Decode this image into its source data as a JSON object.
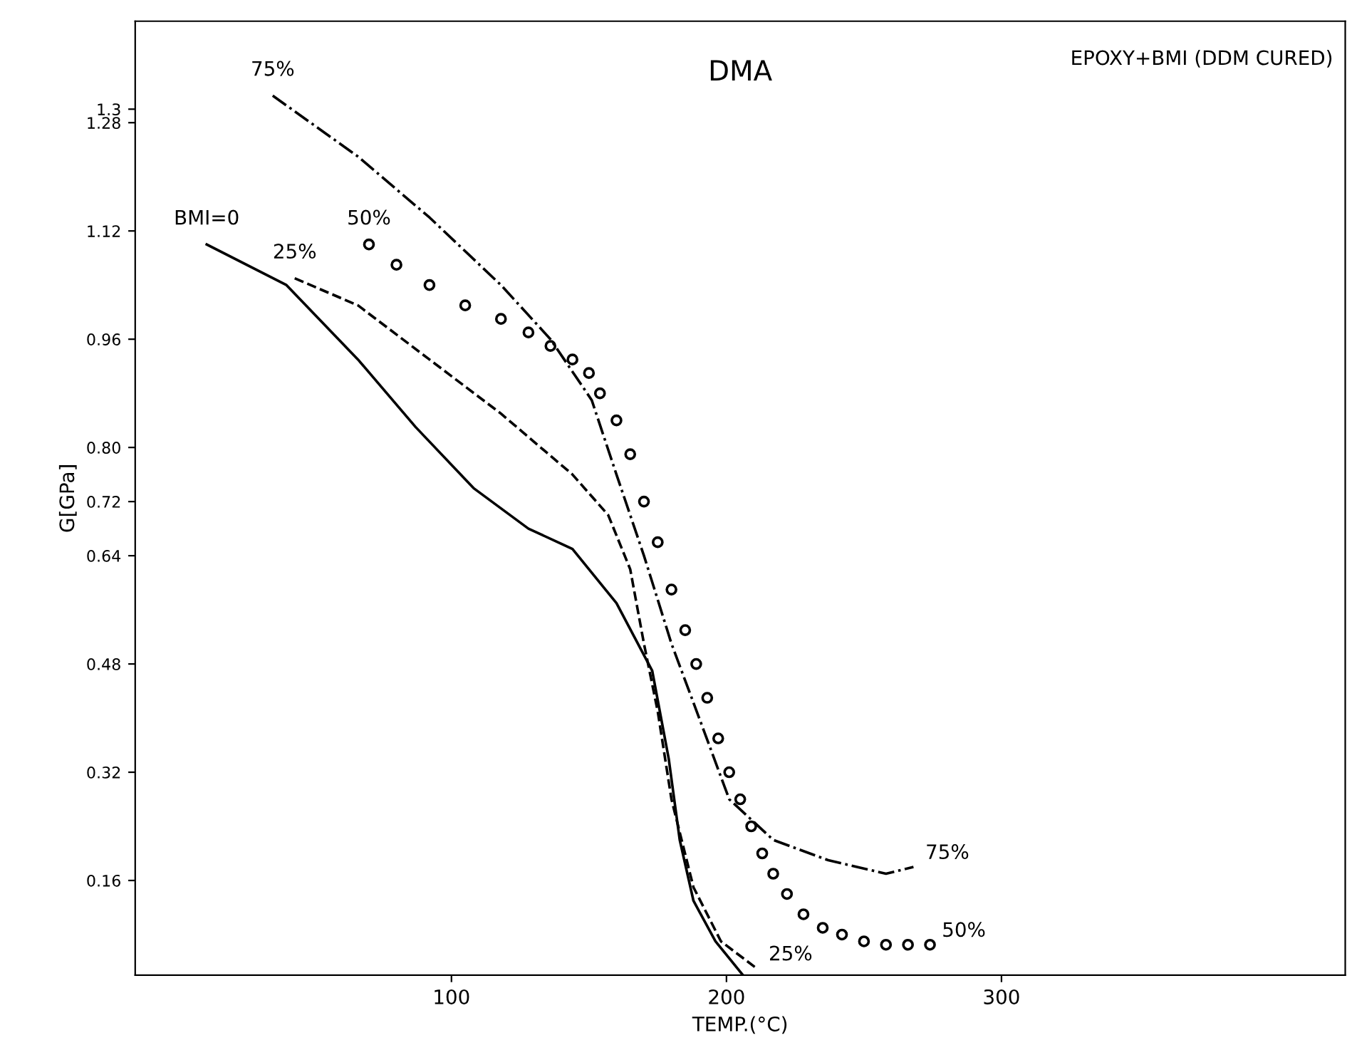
{
  "chart_data": {
    "type": "line",
    "title": "DMA",
    "subtitle": "EPOXY+BMI (DDM CURED)",
    "xlabel": "TEMP.(°C)",
    "ylabel": "G[GPa]",
    "xlim": [
      -15,
      425
    ],
    "xticks": [
      100,
      200,
      300
    ],
    "ylim": [
      0.02,
      1.43
    ],
    "yticks": [
      0.16,
      0.32,
      0.48,
      0.64,
      0.72,
      {
        "value": 0.8,
        "label": "0.80"
      },
      0.96,
      1.12,
      1.28,
      1.3
    ],
    "grid": false,
    "legend": false,
    "series": [
      {
        "name": "BMI=0",
        "color": "#000000",
        "line_style": "solid",
        "marker": "none",
        "x": [
          11,
          40,
          66,
          87,
          108,
          128,
          144,
          160,
          173,
          179,
          183,
          188,
          196,
          206
        ],
        "values": [
          1.1,
          1.04,
          0.93,
          0.83,
          0.74,
          0.68,
          0.65,
          0.57,
          0.47,
          0.34,
          0.22,
          0.13,
          0.07,
          0.02
        ]
      },
      {
        "name": "25%",
        "color": "#000000",
        "line_style": "dashed",
        "marker": "none",
        "x": [
          43,
          66,
          92,
          118,
          144,
          157,
          165,
          170,
          175,
          180,
          188,
          198,
          211
        ],
        "values": [
          1.05,
          1.01,
          0.93,
          0.85,
          0.76,
          0.7,
          0.62,
          0.51,
          0.41,
          0.28,
          0.15,
          0.07,
          0.03
        ]
      },
      {
        "name": "50%",
        "color": "#000000",
        "type": "scatter",
        "marker": "circle",
        "x": [
          70,
          80,
          92,
          105,
          118,
          128,
          136,
          144,
          150,
          154,
          160,
          165,
          170,
          175,
          180,
          185,
          189,
          193,
          197,
          201,
          205,
          209,
          213,
          217,
          222,
          228,
          235,
          242,
          250,
          258,
          266,
          274
        ],
        "values": [
          1.1,
          1.07,
          1.04,
          1.01,
          0.99,
          0.97,
          0.95,
          0.93,
          0.91,
          0.88,
          0.84,
          0.79,
          0.72,
          0.66,
          0.59,
          0.53,
          0.48,
          0.43,
          0.37,
          0.32,
          0.28,
          0.24,
          0.2,
          0.17,
          0.14,
          0.11,
          0.09,
          0.08,
          0.07,
          0.065,
          0.065,
          0.065
        ]
      },
      {
        "name": "75%",
        "color": "#000000",
        "line_style": "dashdot",
        "marker": "none",
        "x": [
          35,
          66,
          92,
          118,
          136,
          151,
          160,
          170,
          180,
          191,
          201,
          217,
          237,
          258,
          268
        ],
        "values": [
          1.32,
          1.23,
          1.14,
          1.04,
          0.96,
          0.87,
          0.76,
          0.64,
          0.51,
          0.39,
          0.28,
          0.22,
          0.19,
          0.17,
          0.18
        ]
      }
    ],
    "annotations": [
      {
        "text": "75%",
        "x": 268,
        "y": 0.18
      },
      {
        "text": "50%",
        "x": 274,
        "y": 0.065
      },
      {
        "text": "25%",
        "x": 211,
        "y": 0.03
      }
    ]
  }
}
